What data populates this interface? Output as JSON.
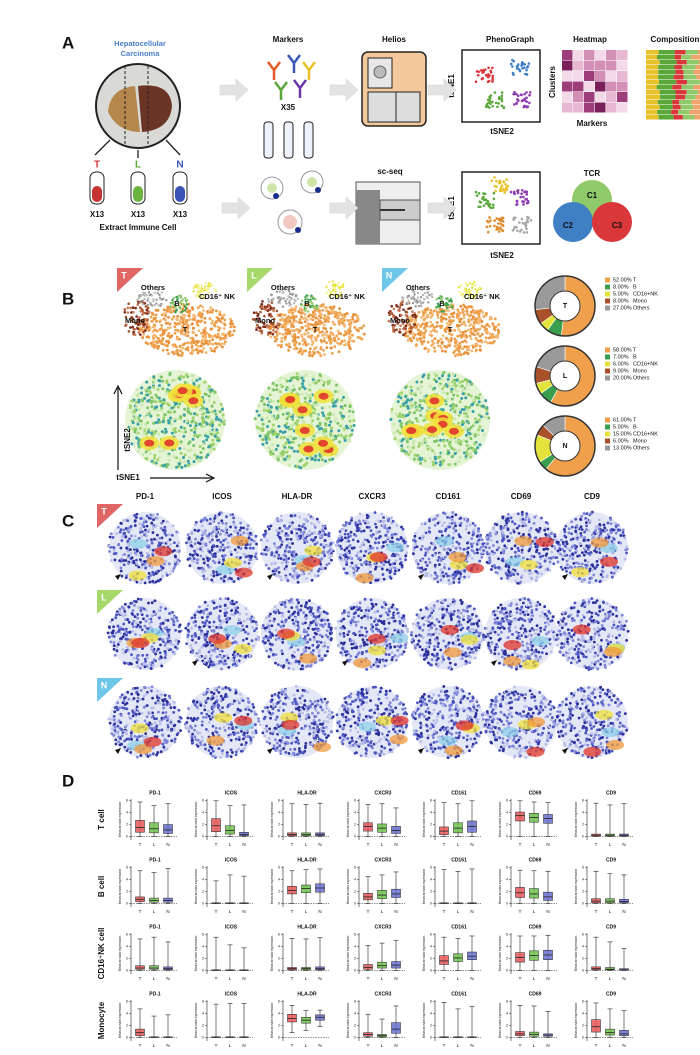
{
  "panel_a": {
    "letter": "A",
    "sample": [
      "Hepatocellular",
      "Carcinoma"
    ],
    "fractions": [
      "T",
      "L",
      "N"
    ],
    "fraction_counts": [
      "X13",
      "X13",
      "X13"
    ],
    "extract": "Extract Immune Cell",
    "markers": "Markers",
    "marker_count": "X35",
    "helios": "Helios",
    "phenograph": "PhenoGraph",
    "tsne1": "tSNE1",
    "tsne2": "tSNE2",
    "heatmap": "Heatmap",
    "clusters": "Clusters",
    "heatmap_x": "Markers",
    "composition": "Composition",
    "scseq": "sc-seq",
    "tcr": "TCR",
    "clonotypes": [
      "C1",
      "C2",
      "C3"
    ]
  },
  "panel_b": {
    "letter": "B",
    "maps": [
      {
        "tag": "T",
        "labels": [
          "Others",
          "CD16⁺ NK",
          "B",
          "Mono",
          "T"
        ]
      },
      {
        "tag": "L",
        "labels": [
          "Others",
          "CD16⁺ NK",
          "B",
          "Mono",
          "T"
        ]
      },
      {
        "tag": "N",
        "labels": [
          "Others",
          "CD16⁺ NK",
          "B",
          "Mono",
          "T"
        ]
      }
    ],
    "axis_y": "tSNE2",
    "axis_x": "tSNE1",
    "donut_categories": [
      "T",
      "B",
      "CD16+NK",
      "Mono",
      "Others"
    ],
    "donut_colors": [
      "#f0a04b",
      "#3a9e4f",
      "#e3e33c",
      "#a9512b",
      "#9a9a9a"
    ],
    "donuts": [
      {
        "center": "T",
        "values": [
          52,
          8,
          5,
          8,
          27
        ],
        "value_labels": [
          "52.00%",
          "8.00%",
          "5.00%",
          "8.00%",
          "27.00%"
        ]
      },
      {
        "center": "L",
        "values": [
          58,
          7,
          6,
          9,
          20
        ],
        "value_labels": [
          "58.00%",
          "7.00%",
          "6.00%",
          "9.00%",
          "20.00%"
        ]
      },
      {
        "center": "N",
        "values": [
          61,
          5,
          15,
          6,
          13
        ],
        "value_labels": [
          "61.00%",
          "5.00%",
          "15.00%",
          "6.00%",
          "13.00%"
        ]
      }
    ]
  },
  "panel_c": {
    "letter": "C",
    "markers": [
      "PD-1",
      "ICOS",
      "HLA-DR",
      "CXCR3",
      "CD161",
      "CD69",
      "CD9"
    ],
    "tags": [
      "T",
      "L",
      "N"
    ]
  },
  "panel_d": {
    "letter": "D",
    "ylabel": "Mean arcsinh expression",
    "ylim": [
      -0.6,
      6.3
    ],
    "yticks": [
      0,
      2,
      4,
      6
    ],
    "groups": [
      "T",
      "L",
      "N"
    ],
    "group_colors": [
      "#e8575a",
      "#6cc24a",
      "#6a6fd0"
    ],
    "rows": [
      {
        "label": "T cell",
        "panels": [
          {
            "title": "PD-1",
            "boxes": [
              [
                0,
                0.7,
                1.5,
                2.7,
                5.8
              ],
              [
                0,
                0.6,
                1.3,
                2.3,
                5.2
              ],
              [
                0,
                0.5,
                1.1,
                2.0,
                5.5
              ]
            ]
          },
          {
            "title": "ICOS",
            "boxes": [
              [
                0,
                0.8,
                1.8,
                3,
                6
              ],
              [
                0,
                0.4,
                1.0,
                1.8,
                5.2
              ],
              [
                0,
                0.1,
                0.3,
                0.7,
                5.3
              ]
            ]
          },
          {
            "title": "HLA-DR",
            "boxes": [
              [
                0,
                0.1,
                0.3,
                0.6,
                5.5
              ],
              [
                0,
                0.1,
                0.3,
                0.6,
                5.4
              ],
              [
                0,
                0.1,
                0.3,
                0.6,
                5.6
              ]
            ]
          },
          {
            "title": "CXCR3",
            "boxes": [
              [
                0,
                0.9,
                1.7,
                2.3,
                5.4
              ],
              [
                0,
                0.7,
                1.4,
                2.1,
                5.5
              ],
              [
                0,
                0.5,
                1.0,
                1.7,
                4.8
              ]
            ]
          },
          {
            "title": "CD161",
            "boxes": [
              [
                0,
                0.3,
                0.9,
                1.6,
                5.7
              ],
              [
                0,
                0.6,
                1.4,
                2.3,
                5.5
              ],
              [
                0,
                0.7,
                1.7,
                2.6,
                6
              ]
            ]
          },
          {
            "title": "CD69",
            "boxes": [
              [
                0,
                2.6,
                3.5,
                4.1,
                6
              ],
              [
                0,
                2.4,
                3.2,
                3.9,
                5.8
              ],
              [
                0,
                2.2,
                3.0,
                3.7,
                5.7
              ]
            ]
          },
          {
            "title": "CD9",
            "boxes": [
              [
                0,
                0.05,
                0.2,
                0.4,
                5.6
              ],
              [
                0,
                0.05,
                0.2,
                0.4,
                5.3
              ],
              [
                0,
                0.05,
                0.2,
                0.4,
                5.5
              ]
            ]
          }
        ]
      },
      {
        "label": "B cell",
        "panels": [
          {
            "title": "PD-1",
            "boxes": [
              [
                0,
                0.3,
                0.7,
                1.1,
                5.5
              ],
              [
                0,
                0.2,
                0.5,
                0.9,
                5.2
              ],
              [
                0,
                0.2,
                0.5,
                0.9,
                5.9
              ]
            ]
          },
          {
            "title": "ICOS",
            "boxes": [
              [
                0,
                0,
                0.05,
                0.1,
                3.8
              ],
              [
                0,
                0,
                0.05,
                0.1,
                4.8
              ],
              [
                0,
                0,
                0.05,
                0.1,
                4.6
              ]
            ]
          },
          {
            "title": "HLA-DR",
            "boxes": [
              [
                0,
                1.6,
                2.2,
                2.9,
                5.5
              ],
              [
                0,
                1.8,
                2.5,
                3.1,
                5.7
              ],
              [
                0,
                1.9,
                2.6,
                3.3,
                5.8
              ]
            ]
          },
          {
            "title": "CXCR3",
            "boxes": [
              [
                0,
                0.6,
                1.1,
                1.7,
                4.5
              ],
              [
                0,
                0.8,
                1.4,
                2.2,
                4.8
              ],
              [
                0,
                1.0,
                1.6,
                2.4,
                5.3
              ]
            ]
          },
          {
            "title": "CD161",
            "boxes": [
              [
                0,
                0,
                0.05,
                0.1,
                5.7
              ],
              [
                0,
                0,
                0.05,
                0.1,
                5.4
              ],
              [
                0,
                0,
                0.05,
                0.1,
                5.8
              ]
            ]
          },
          {
            "title": "CD69",
            "boxes": [
              [
                0,
                1.0,
                1.8,
                2.7,
                5.6
              ],
              [
                0,
                0.9,
                1.6,
                2.5,
                5.5
              ],
              [
                0,
                0.5,
                1.1,
                1.9,
                5.4
              ]
            ]
          },
          {
            "title": "CD9",
            "boxes": [
              [
                0,
                0.1,
                0.4,
                0.8,
                5.4
              ],
              [
                0,
                0.1,
                0.4,
                0.8,
                5
              ],
              [
                0,
                0.1,
                0.3,
                0.7,
                4.8
              ]
            ]
          }
        ]
      },
      {
        "label": "CD16⁺NK cell",
        "panels": [
          {
            "title": "PD-1",
            "boxes": [
              [
                0,
                0.2,
                0.4,
                0.8,
                5.3
              ],
              [
                0,
                0.2,
                0.4,
                0.8,
                5.6
              ],
              [
                0,
                0.1,
                0.3,
                0.6,
                4.8
              ]
            ]
          },
          {
            "title": "ICOS",
            "boxes": [
              [
                0,
                0,
                0.05,
                0.1,
                5.6
              ],
              [
                0,
                0,
                0.05,
                0.1,
                4.3
              ],
              [
                0,
                0,
                0.05,
                0.1,
                3.8
              ]
            ]
          },
          {
            "title": "HLA-DR",
            "boxes": [
              [
                0,
                0.1,
                0.3,
                0.5,
                5.4
              ],
              [
                0,
                0.1,
                0.3,
                0.5,
                5.3
              ],
              [
                0,
                0.1,
                0.3,
                0.6,
                5.5
              ]
            ]
          },
          {
            "title": "CXCR3",
            "boxes": [
              [
                0,
                0.2,
                0.5,
                1.0,
                4.2
              ],
              [
                0,
                0.4,
                0.8,
                1.4,
                4.6
              ],
              [
                0,
                0.4,
                0.9,
                1.5,
                5.0
              ]
            ]
          },
          {
            "title": "CD161",
            "boxes": [
              [
                0,
                1.0,
                1.6,
                2.5,
                5.6
              ],
              [
                0,
                1.5,
                2.1,
                2.8,
                5.4
              ],
              [
                0,
                1.8,
                2.4,
                3.1,
                5.8
              ]
            ]
          },
          {
            "title": "CD69",
            "boxes": [
              [
                0,
                1.4,
                2.2,
                3.0,
                5.8
              ],
              [
                0,
                1.7,
                2.5,
                3.3,
                5.8
              ],
              [
                0,
                1.8,
                2.6,
                3.4,
                5.9
              ]
            ]
          },
          {
            "title": "CD9",
            "boxes": [
              [
                0,
                0.1,
                0.3,
                0.6,
                5.6
              ],
              [
                0,
                0.1,
                0.2,
                0.5,
                4.8
              ],
              [
                0,
                0.05,
                0.1,
                0.3,
                3.7
              ]
            ]
          }
        ]
      },
      {
        "label": "Monocyte",
        "panels": [
          {
            "title": "PD-1",
            "boxes": [
              [
                0,
                0.3,
                0.8,
                1.4,
                4.8
              ],
              [
                0,
                0,
                0.05,
                0.1,
                3.6
              ],
              [
                0,
                0,
                0.05,
                0.1,
                3.8
              ]
            ]
          },
          {
            "title": "ICOS",
            "boxes": [
              [
                0,
                0,
                0.05,
                0.1,
                5.6
              ],
              [
                0,
                0,
                0.05,
                0.1,
                5.7
              ],
              [
                0,
                0,
                0.05,
                0.1,
                5.7
              ]
            ]
          },
          {
            "title": "HLA-DR",
            "boxes": [
              [
                0.8,
                2.6,
                3.2,
                3.9,
                5.4
              ],
              [
                1.2,
                2.4,
                2.9,
                3.4,
                4.5
              ],
              [
                1.8,
                2.9,
                3.4,
                3.8,
                4.6
              ]
            ]
          },
          {
            "title": "CXCR3",
            "boxes": [
              [
                0,
                0.2,
                0.5,
                0.8,
                3.9
              ],
              [
                0,
                0.1,
                0.3,
                0.5,
                3.1
              ],
              [
                0,
                0.7,
                1.4,
                2.5,
                5.3
              ]
            ]
          },
          {
            "title": "CD161",
            "boxes": [
              [
                0,
                0,
                0.05,
                0.1,
                5.9
              ],
              [
                0,
                0,
                0.05,
                0.1,
                4.8
              ],
              [
                0,
                0,
                0.05,
                0.1,
                5.2
              ]
            ]
          },
          {
            "title": "CD69",
            "boxes": [
              [
                0,
                0.3,
                0.6,
                1.0,
                5.4
              ],
              [
                0,
                0.2,
                0.5,
                0.9,
                5.3
              ],
              [
                0,
                0.2,
                0.4,
                0.6,
                4.4
              ]
            ]
          },
          {
            "title": "CD9",
            "boxes": [
              [
                0,
                0.9,
                1.8,
                3.0,
                5.8
              ],
              [
                0,
                0.4,
                0.8,
                1.4,
                4.8
              ],
              [
                0,
                0.3,
                0.6,
                1.2,
                4.5
              ]
            ]
          }
        ]
      }
    ]
  }
}
